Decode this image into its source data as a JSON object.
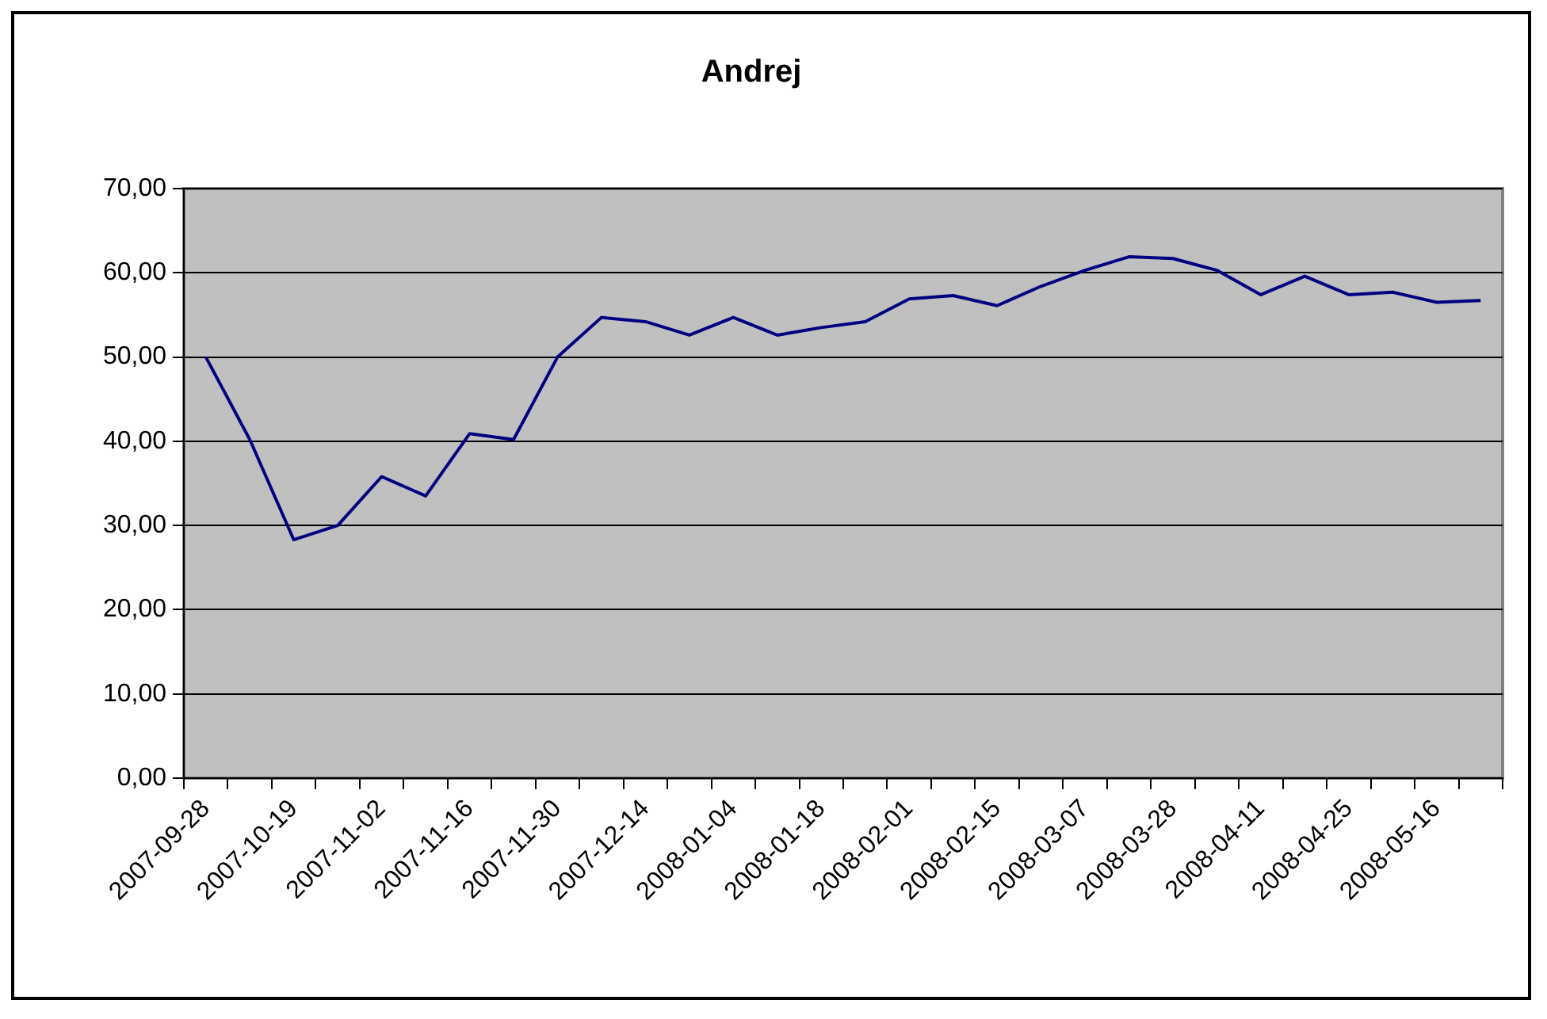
{
  "chart_data": {
    "type": "line",
    "title": "Andrej",
    "categories": [
      "2007-09-28",
      null,
      "2007-10-19",
      null,
      "2007-11-02",
      null,
      "2007-11-16",
      null,
      "2007-11-30",
      null,
      "2007-12-14",
      null,
      "2008-01-04",
      null,
      "2008-01-18",
      null,
      "2008-02-01",
      null,
      "2008-02-15",
      null,
      "2008-03-07",
      null,
      "2008-03-28",
      null,
      "2008-04-11",
      null,
      "2008-04-25",
      null,
      "2008-05-16",
      null
    ],
    "series": [
      {
        "color": "#000080",
        "values": [
          50.0,
          40.2,
          28.3,
          30.0,
          35.8,
          33.5,
          40.9,
          40.2,
          50.0,
          54.7,
          54.2,
          52.6,
          54.7,
          52.6,
          53.5,
          54.2,
          56.9,
          57.3,
          56.1,
          58.4,
          60.3,
          61.9,
          61.7,
          60.3,
          57.4,
          59.6,
          57.4,
          57.7,
          56.5,
          56.7
        ]
      }
    ],
    "ylim": [
      0,
      70
    ],
    "yticks": [
      {
        "value": 0,
        "label": "0,00"
      },
      {
        "value": 10,
        "label": "10,00"
      },
      {
        "value": 20,
        "label": "20,00"
      },
      {
        "value": 30,
        "label": "30,00"
      },
      {
        "value": 40,
        "label": "40,00"
      },
      {
        "value": 50,
        "label": "50,00"
      },
      {
        "value": 60,
        "label": "60,00"
      },
      {
        "value": 70,
        "label": "70,00"
      }
    ],
    "grid": "y",
    "legend": false,
    "marker": "none",
    "line_style": "solid"
  }
}
